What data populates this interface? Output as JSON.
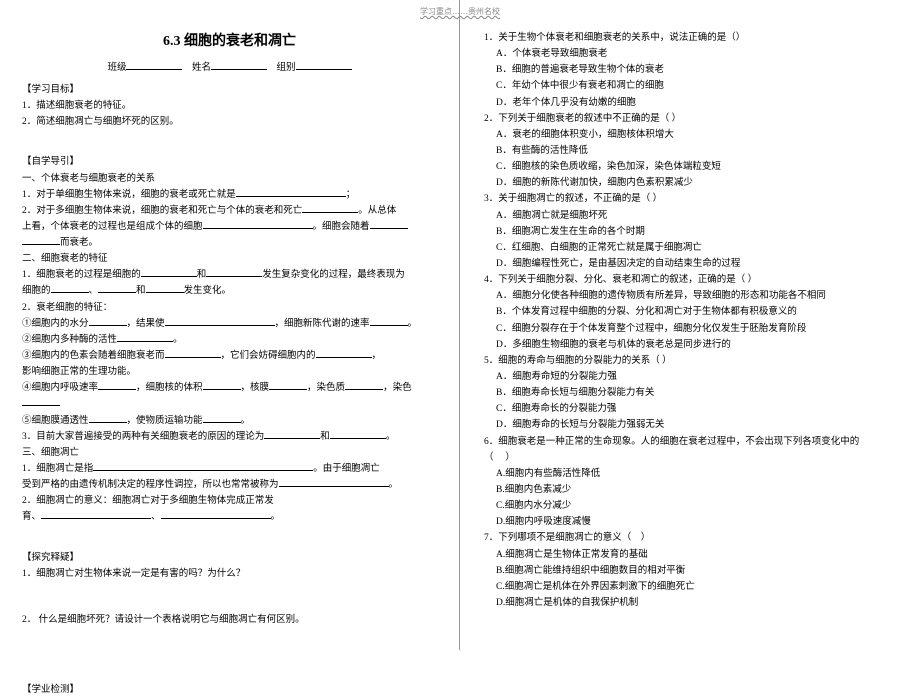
{
  "header_mark": "学习重点……贵州名校",
  "title": "6.3 细胞的衰老和凋亡",
  "meta": {
    "class_label": "班级",
    "name_label": "姓名",
    "group_label": "组别"
  },
  "left": {
    "goals_head": "【学习目标】",
    "goal1": "1．描述细胞衰老的特征。",
    "goal2": "2．简述细胞凋亡与细胞坏死的区别。",
    "guide_head": "【自学导引】",
    "s1_head": "一、个体衰老与细胞衰老的关系",
    "s1_1a": "1．对于单细胞生物体来说，细胞的衰老或死亡就是",
    "s1_1b": "；",
    "s1_2a": "2．对于多细胞生物体来说，细胞的衰老和死亡与个体的衰老和死亡",
    "s1_2b": "。从总体",
    "s1_2c": "上看，个体衰老的过程也是组成个体的细胞",
    "s1_2d": "。细胞会随着",
    "s1_2e": "而衰老。",
    "s2_head": "二、细胞衰老的特征",
    "s2_1a": "1．细胞衰老的过程是细胞的",
    "s2_1b": "和",
    "s2_1c": "发生复杂变化的过程，最终表现为",
    "s2_1d": "细胞的",
    "s2_1e": "、",
    "s2_1f": "和",
    "s2_1g": "发生变化。",
    "s2_2": "2．衰老细胞的特征：",
    "s2_f1a": "①细胞内的水分",
    "s2_f1b": "，结果使",
    "s2_f1c": "，细胞新陈代谢的速率",
    "s2_f1d": "。",
    "s2_f2a": "②细胞内多种酶的活性",
    "s2_f2b": "。",
    "s2_f3a": "③细胞内的色素会随着细胞衰老而",
    "s2_f3b": "，它们会妨碍细胞内的",
    "s2_f3c": "，",
    "s2_f3d": "影响细胞正常的生理功能。",
    "s2_f4a": "④细胞内呼吸速率",
    "s2_f4b": "，细胞核的体积",
    "s2_f4c": "，核膜",
    "s2_f4d": "，染色质",
    "s2_f4e": "，染色",
    "s2_f4f": "⑤细胞膜通透性",
    "s2_f4g": "，使物质运输功能",
    "s2_f4h": "。",
    "s2_3a": "3．目前大家普遍接受的两种有关细胞衰老的原因的理论为",
    "s2_3b": "和",
    "s2_3c": "。",
    "s3_head": "三、细胞凋亡",
    "s3_1a": "1．细胞凋亡是指",
    "s3_1b": "。由于细胞凋亡",
    "s3_1c": "受到严格的由遗传机制决定的程序性调控，所以也常常被称为",
    "s3_1d": "。",
    "s3_2a": "2．细胞凋亡的意义：细胞凋亡对于多细胞生物体完成正常发",
    "s3_2b": "育、",
    "s3_2c": "、",
    "s3_2d": "。",
    "explore_head": "【探究释疑】",
    "exp1": "1．细胞凋亡对生物体来说一定是有害的吗？为什么？",
    "exp2": "2．  什么是细胞坏死？请设计一个表格说明它与细胞凋亡有何区别。",
    "test_head": "【学业检测】"
  },
  "right": {
    "q1": "1．关于生物个体衰老和细胞衰老的关系中，说法正确的是（）",
    "q1a": "A．个体衰老导致细胞衰老",
    "q1b": "B．细胞的普遍衰老导致生物个体的衰老",
    "q1c": "C．年幼个体中很少有衰老和凋亡的细胞",
    "q1d": "D．老年个体几乎没有幼嫩的细胞",
    "q2": "2．下列关于细胞衰老的叙述中不正确的是（  ）",
    "q2a": "A．衰老的细胞体积变小，细胞核体积增大",
    "q2b": "B．有些酶的活性降低",
    "q2c": "C．细胞核的染色质收缩，染色加深，染色体端粒变短",
    "q2d": "D．细胞的新陈代谢加快，细胞内色素积累减少",
    "q3": "3．关于细胞凋亡的叙述，不正确的是（   ）",
    "q3a": "A．细胞凋亡就是细胞坏死",
    "q3b": "B．细胞凋亡发生在生命的各个时期",
    "q3c": "C．红细胞、白细胞的正常死亡就是属于细胞凋亡",
    "q3d": "D．细胞编程性死亡，是由基因决定的自动结束生命的过程",
    "q4": "4．下列关于细胞分裂、分化、衰老和凋亡的叙述，正确的是（   ）",
    "q4a": "A．细胞分化使各种细胞的遗传物质有所差异，导致细胞的形态和功能各不相同",
    "q4b": "B．个体发育过程中细胞的分裂、分化和凋亡对于生物体都有积极意义的",
    "q4c": "C．细胞分裂存在于个体发育整个过程中，细胞分化仅发生于胚胎发育阶段",
    "q4d": "D．多细胞生物细胞的衰老与机体的衰老总是同步进行的",
    "q5": "5．细胞的寿命与细胞的分裂能力的关系（   ）",
    "q5a": "A．细胞寿命短的分裂能力强",
    "q5b": "B．细胞寿命长短与细胞分裂能力有关",
    "q5c": "C．细胞寿命长的分裂能力强",
    "q5d": "D．细胞寿命的长短与分裂能力强弱无关",
    "q6a": "6．细胞衰老是一种正常的生命现象。人的细胞在衰老过程中，不会出现下列各项变化中的",
    "q6b": "（  　）",
    "q6oa": "A.细胞内有些酶活性降低",
    "q6ob": "B.细胞内色素减少",
    "q6oc": "C.细胞内水分减少",
    "q6od": "D.细胞内呼吸速度减慢",
    "q7": "7．下列哪项不是细胞凋亡的意义（　）",
    "q7a": "A.细胞凋亡是生物体正常发育的基础",
    "q7b": "B.细胞凋亡能维持组织中细胞数目的相对平衡",
    "q7c": "C.细胞凋亡是机体在外界因素刺激下的细胞死亡",
    "q7d": "D.细胞凋亡是机体的自我保护机制"
  }
}
